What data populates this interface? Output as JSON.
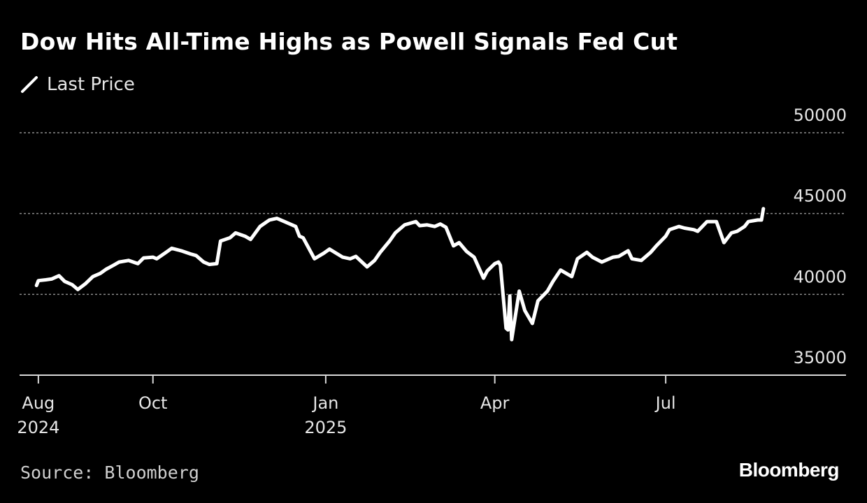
{
  "title": "Dow Hits All-Time Highs as Powell Signals Fed Cut",
  "legend_label": "Last Price",
  "source": "Source: Bloomberg",
  "brand": "Bloomberg",
  "colors": {
    "background": "#000000",
    "line": "#ffffff",
    "grid": "#8c8c8c",
    "text": "#e6e6e6"
  },
  "chart_data": {
    "type": "line",
    "series": [
      {
        "name": "Last Price",
        "x": [
          "2024-07-31",
          "2024-08-01",
          "2024-08-05",
          "2024-08-08",
          "2024-08-12",
          "2024-08-15",
          "2024-08-19",
          "2024-08-22",
          "2024-08-26",
          "2024-08-30",
          "2024-09-03",
          "2024-09-06",
          "2024-09-10",
          "2024-09-13",
          "2024-09-18",
          "2024-09-23",
          "2024-09-26",
          "2024-10-01",
          "2024-10-03",
          "2024-10-08",
          "2024-10-11",
          "2024-10-16",
          "2024-10-21",
          "2024-10-24",
          "2024-10-28",
          "2024-10-31",
          "2024-11-04",
          "2024-11-06",
          "2024-11-11",
          "2024-11-14",
          "2024-11-19",
          "2024-11-22",
          "2024-11-27",
          "2024-12-02",
          "2024-12-06",
          "2024-12-10",
          "2024-12-16",
          "2024-12-18",
          "2024-12-20",
          "2024-12-26",
          "2024-12-31",
          "2025-01-03",
          "2025-01-10",
          "2025-01-14",
          "2025-01-17",
          "2025-01-23",
          "2025-01-27",
          "2025-01-30",
          "2025-02-04",
          "2025-02-07",
          "2025-02-12",
          "2025-02-18",
          "2025-02-20",
          "2025-02-24",
          "2025-02-28",
          "2025-03-03",
          "2025-03-06",
          "2025-03-10",
          "2025-03-13",
          "2025-03-17",
          "2025-03-21",
          "2025-03-26",
          "2025-03-28",
          "2025-04-01",
          "2025-04-03",
          "2025-04-04",
          "2025-04-07",
          "2025-04-08",
          "2025-04-09",
          "2025-04-10",
          "2025-04-14",
          "2025-04-17",
          "2025-04-21",
          "2025-04-24",
          "2025-04-29",
          "2025-05-02",
          "2025-05-06",
          "2025-05-12",
          "2025-05-15",
          "2025-05-20",
          "2025-05-23",
          "2025-05-28",
          "2025-06-03",
          "2025-06-06",
          "2025-06-11",
          "2025-06-13",
          "2025-06-18",
          "2025-06-23",
          "2025-06-26",
          "2025-07-01",
          "2025-07-03",
          "2025-07-08",
          "2025-07-11",
          "2025-07-16",
          "2025-07-18",
          "2025-07-23",
          "2025-07-28",
          "2025-08-01",
          "2025-08-05",
          "2025-08-08",
          "2025-08-12",
          "2025-08-14",
          "2025-08-19",
          "2025-08-21",
          "2025-08-22"
        ],
        "y": [
          40550,
          40850,
          40900,
          40950,
          41150,
          40800,
          40600,
          40300,
          40650,
          41100,
          41300,
          41550,
          41800,
          42000,
          42100,
          41900,
          42250,
          42300,
          42200,
          42600,
          42850,
          42700,
          42500,
          42400,
          42000,
          41850,
          41900,
          43300,
          43500,
          43800,
          43600,
          43400,
          44200,
          44600,
          44700,
          44500,
          44200,
          43600,
          43500,
          42200,
          42550,
          42800,
          42300,
          42200,
          42350,
          41700,
          42100,
          42600,
          43300,
          43800,
          44300,
          44500,
          44250,
          44300,
          44200,
          44350,
          44150,
          43000,
          43200,
          42650,
          42300,
          41000,
          41450,
          41900,
          42000,
          41800,
          37900,
          37800,
          39900,
          37200,
          40200,
          39000,
          38200,
          39600,
          40200,
          40800,
          41500,
          41100,
          42200,
          42600,
          42300,
          42000,
          42300,
          42350,
          42700,
          42200,
          42100,
          42600,
          43000,
          43600,
          44000,
          44200,
          44100,
          44000,
          43900,
          44500,
          44500,
          43200,
          43800,
          43900,
          44200,
          44500,
          44600,
          44600,
          45300
        ]
      }
    ],
    "x_ticks": [
      {
        "date": "2024-08-01",
        "line1": "Aug",
        "line2": "2024"
      },
      {
        "date": "2024-10-01",
        "line1": "Oct",
        "line2": ""
      },
      {
        "date": "2025-01-01",
        "line1": "Jan",
        "line2": "2025"
      },
      {
        "date": "2025-04-01",
        "line1": "Apr",
        "line2": ""
      },
      {
        "date": "2025-07-01",
        "line1": "Jul",
        "line2": ""
      }
    ],
    "y_ticks": [
      35000,
      40000,
      45000,
      50000
    ],
    "ylim": [
      35000,
      50000
    ],
    "xlim": [
      "2024-07-22",
      "2025-10-05"
    ],
    "grid": true,
    "legend_position": "top-left",
    "y_axis_position": "right"
  }
}
